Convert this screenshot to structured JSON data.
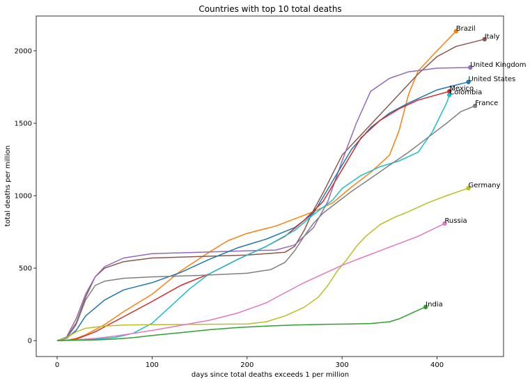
{
  "chart_data": {
    "type": "line",
    "title": "Countries with top 10 total deaths",
    "xlabel": "days since total deaths exceeds 1 per million",
    "ylabel": "total deaths per million",
    "xlim": [
      -22,
      470
    ],
    "ylim": [
      -110,
      2240
    ],
    "xticks": [
      0,
      100,
      200,
      300,
      400
    ],
    "yticks": [
      0,
      500,
      1000,
      1500,
      2000
    ],
    "grid": false,
    "legend": "none",
    "series": [
      {
        "name": "Brazil",
        "color": "#ff7f0e",
        "points": [
          [
            0,
            0
          ],
          [
            10,
            3
          ],
          [
            20,
            15
          ],
          [
            30,
            40
          ],
          [
            50,
            110
          ],
          [
            70,
            200
          ],
          [
            100,
            320
          ],
          [
            130,
            480
          ],
          [
            160,
            610
          ],
          [
            180,
            690
          ],
          [
            200,
            740
          ],
          [
            230,
            790
          ],
          [
            250,
            840
          ],
          [
            270,
            890
          ],
          [
            290,
            950
          ],
          [
            310,
            1060
          ],
          [
            330,
            1160
          ],
          [
            350,
            1280
          ],
          [
            360,
            1450
          ],
          [
            370,
            1700
          ],
          [
            380,
            1860
          ],
          [
            400,
            2000
          ],
          [
            420,
            2135
          ]
        ]
      },
      {
        "name": "Italy",
        "color": "#8c564b",
        "points": [
          [
            0,
            0
          ],
          [
            10,
            20
          ],
          [
            20,
            120
          ],
          [
            30,
            300
          ],
          [
            40,
            440
          ],
          [
            50,
            500
          ],
          [
            70,
            545
          ],
          [
            100,
            570
          ],
          [
            150,
            580
          ],
          [
            200,
            590
          ],
          [
            240,
            610
          ],
          [
            250,
            650
          ],
          [
            260,
            760
          ],
          [
            270,
            900
          ],
          [
            280,
            1020
          ],
          [
            290,
            1150
          ],
          [
            300,
            1280
          ],
          [
            320,
            1420
          ],
          [
            340,
            1560
          ],
          [
            360,
            1700
          ],
          [
            380,
            1840
          ],
          [
            400,
            1960
          ],
          [
            420,
            2030
          ],
          [
            450,
            2080
          ]
        ]
      },
      {
        "name": "United Kingdom",
        "color": "#9467bd",
        "points": [
          [
            0,
            0
          ],
          [
            10,
            25
          ],
          [
            20,
            150
          ],
          [
            30,
            320
          ],
          [
            40,
            440
          ],
          [
            50,
            510
          ],
          [
            70,
            570
          ],
          [
            100,
            600
          ],
          [
            150,
            610
          ],
          [
            200,
            620
          ],
          [
            230,
            625
          ],
          [
            250,
            660
          ],
          [
            270,
            780
          ],
          [
            285,
            960
          ],
          [
            300,
            1240
          ],
          [
            315,
            1500
          ],
          [
            330,
            1720
          ],
          [
            350,
            1810
          ],
          [
            370,
            1855
          ],
          [
            400,
            1880
          ],
          [
            435,
            1885
          ]
        ]
      },
      {
        "name": "United States",
        "color": "#1f77b4",
        "points": [
          [
            0,
            0
          ],
          [
            10,
            15
          ],
          [
            20,
            70
          ],
          [
            30,
            170
          ],
          [
            50,
            280
          ],
          [
            70,
            350
          ],
          [
            100,
            400
          ],
          [
            130,
            470
          ],
          [
            160,
            560
          ],
          [
            190,
            640
          ],
          [
            220,
            700
          ],
          [
            250,
            780
          ],
          [
            270,
            880
          ],
          [
            290,
            1100
          ],
          [
            310,
            1320
          ],
          [
            330,
            1470
          ],
          [
            350,
            1570
          ],
          [
            370,
            1640
          ],
          [
            400,
            1730
          ],
          [
            433,
            1785
          ]
        ]
      },
      {
        "name": "Mexico",
        "color": "#d62728",
        "points": [
          [
            0,
            0
          ],
          [
            10,
            2
          ],
          [
            20,
            10
          ],
          [
            40,
            60
          ],
          [
            60,
            130
          ],
          [
            80,
            200
          ],
          [
            100,
            270
          ],
          [
            130,
            380
          ],
          [
            160,
            460
          ],
          [
            190,
            560
          ],
          [
            220,
            650
          ],
          [
            240,
            720
          ],
          [
            260,
            830
          ],
          [
            280,
            960
          ],
          [
            300,
            1180
          ],
          [
            320,
            1400
          ],
          [
            340,
            1520
          ],
          [
            360,
            1600
          ],
          [
            380,
            1660
          ],
          [
            413,
            1720
          ]
        ]
      },
      {
        "name": "Colombia",
        "color": "#17becf",
        "points": [
          [
            0,
            0
          ],
          [
            20,
            5
          ],
          [
            40,
            10
          ],
          [
            60,
            20
          ],
          [
            80,
            50
          ],
          [
            100,
            120
          ],
          [
            120,
            240
          ],
          [
            140,
            360
          ],
          [
            160,
            460
          ],
          [
            190,
            560
          ],
          [
            220,
            650
          ],
          [
            250,
            760
          ],
          [
            270,
            870
          ],
          [
            290,
            970
          ],
          [
            300,
            1050
          ],
          [
            320,
            1140
          ],
          [
            340,
            1200
          ],
          [
            360,
            1240
          ],
          [
            380,
            1300
          ],
          [
            395,
            1440
          ],
          [
            410,
            1640
          ],
          [
            413,
            1695
          ]
        ]
      },
      {
        "name": "France",
        "color": "#7f7f7f",
        "points": [
          [
            0,
            0
          ],
          [
            10,
            15
          ],
          [
            20,
            110
          ],
          [
            30,
            280
          ],
          [
            40,
            380
          ],
          [
            50,
            410
          ],
          [
            70,
            430
          ],
          [
            100,
            440
          ],
          [
            150,
            450
          ],
          [
            200,
            465
          ],
          [
            225,
            490
          ],
          [
            240,
            540
          ],
          [
            250,
            620
          ],
          [
            260,
            720
          ],
          [
            270,
            810
          ],
          [
            280,
            880
          ],
          [
            290,
            930
          ],
          [
            310,
            1030
          ],
          [
            330,
            1120
          ],
          [
            350,
            1210
          ],
          [
            370,
            1300
          ],
          [
            390,
            1400
          ],
          [
            410,
            1500
          ],
          [
            425,
            1580
          ],
          [
            440,
            1620
          ]
        ]
      },
      {
        "name": "Germany",
        "color": "#bcbd22",
        "points": [
          [
            0,
            0
          ],
          [
            10,
            20
          ],
          [
            20,
            60
          ],
          [
            30,
            85
          ],
          [
            50,
            100
          ],
          [
            70,
            107
          ],
          [
            100,
            110
          ],
          [
            150,
            112
          ],
          [
            200,
            115
          ],
          [
            220,
            130
          ],
          [
            240,
            170
          ],
          [
            260,
            230
          ],
          [
            275,
            300
          ],
          [
            285,
            380
          ],
          [
            295,
            480
          ],
          [
            305,
            560
          ],
          [
            315,
            650
          ],
          [
            325,
            720
          ],
          [
            340,
            800
          ],
          [
            355,
            850
          ],
          [
            370,
            890
          ],
          [
            390,
            950
          ],
          [
            410,
            1000
          ],
          [
            433,
            1052
          ]
        ]
      },
      {
        "name": "Russia",
        "color": "#e377c2",
        "points": [
          [
            0,
            0
          ],
          [
            20,
            5
          ],
          [
            40,
            15
          ],
          [
            60,
            30
          ],
          [
            80,
            50
          ],
          [
            100,
            70
          ],
          [
            130,
            105
          ],
          [
            160,
            140
          ],
          [
            190,
            190
          ],
          [
            220,
            260
          ],
          [
            240,
            330
          ],
          [
            260,
            400
          ],
          [
            280,
            460
          ],
          [
            300,
            520
          ],
          [
            320,
            570
          ],
          [
            340,
            620
          ],
          [
            360,
            670
          ],
          [
            380,
            720
          ],
          [
            408,
            808
          ]
        ]
      },
      {
        "name": "India",
        "color": "#2ca02c",
        "points": [
          [
            0,
            0
          ],
          [
            40,
            5
          ],
          [
            60,
            10
          ],
          [
            80,
            20
          ],
          [
            100,
            35
          ],
          [
            130,
            55
          ],
          [
            160,
            75
          ],
          [
            190,
            90
          ],
          [
            220,
            100
          ],
          [
            250,
            107
          ],
          [
            280,
            112
          ],
          [
            310,
            115
          ],
          [
            330,
            118
          ],
          [
            350,
            130
          ],
          [
            360,
            150
          ],
          [
            370,
            180
          ],
          [
            380,
            210
          ],
          [
            388,
            232
          ]
        ]
      }
    ]
  }
}
